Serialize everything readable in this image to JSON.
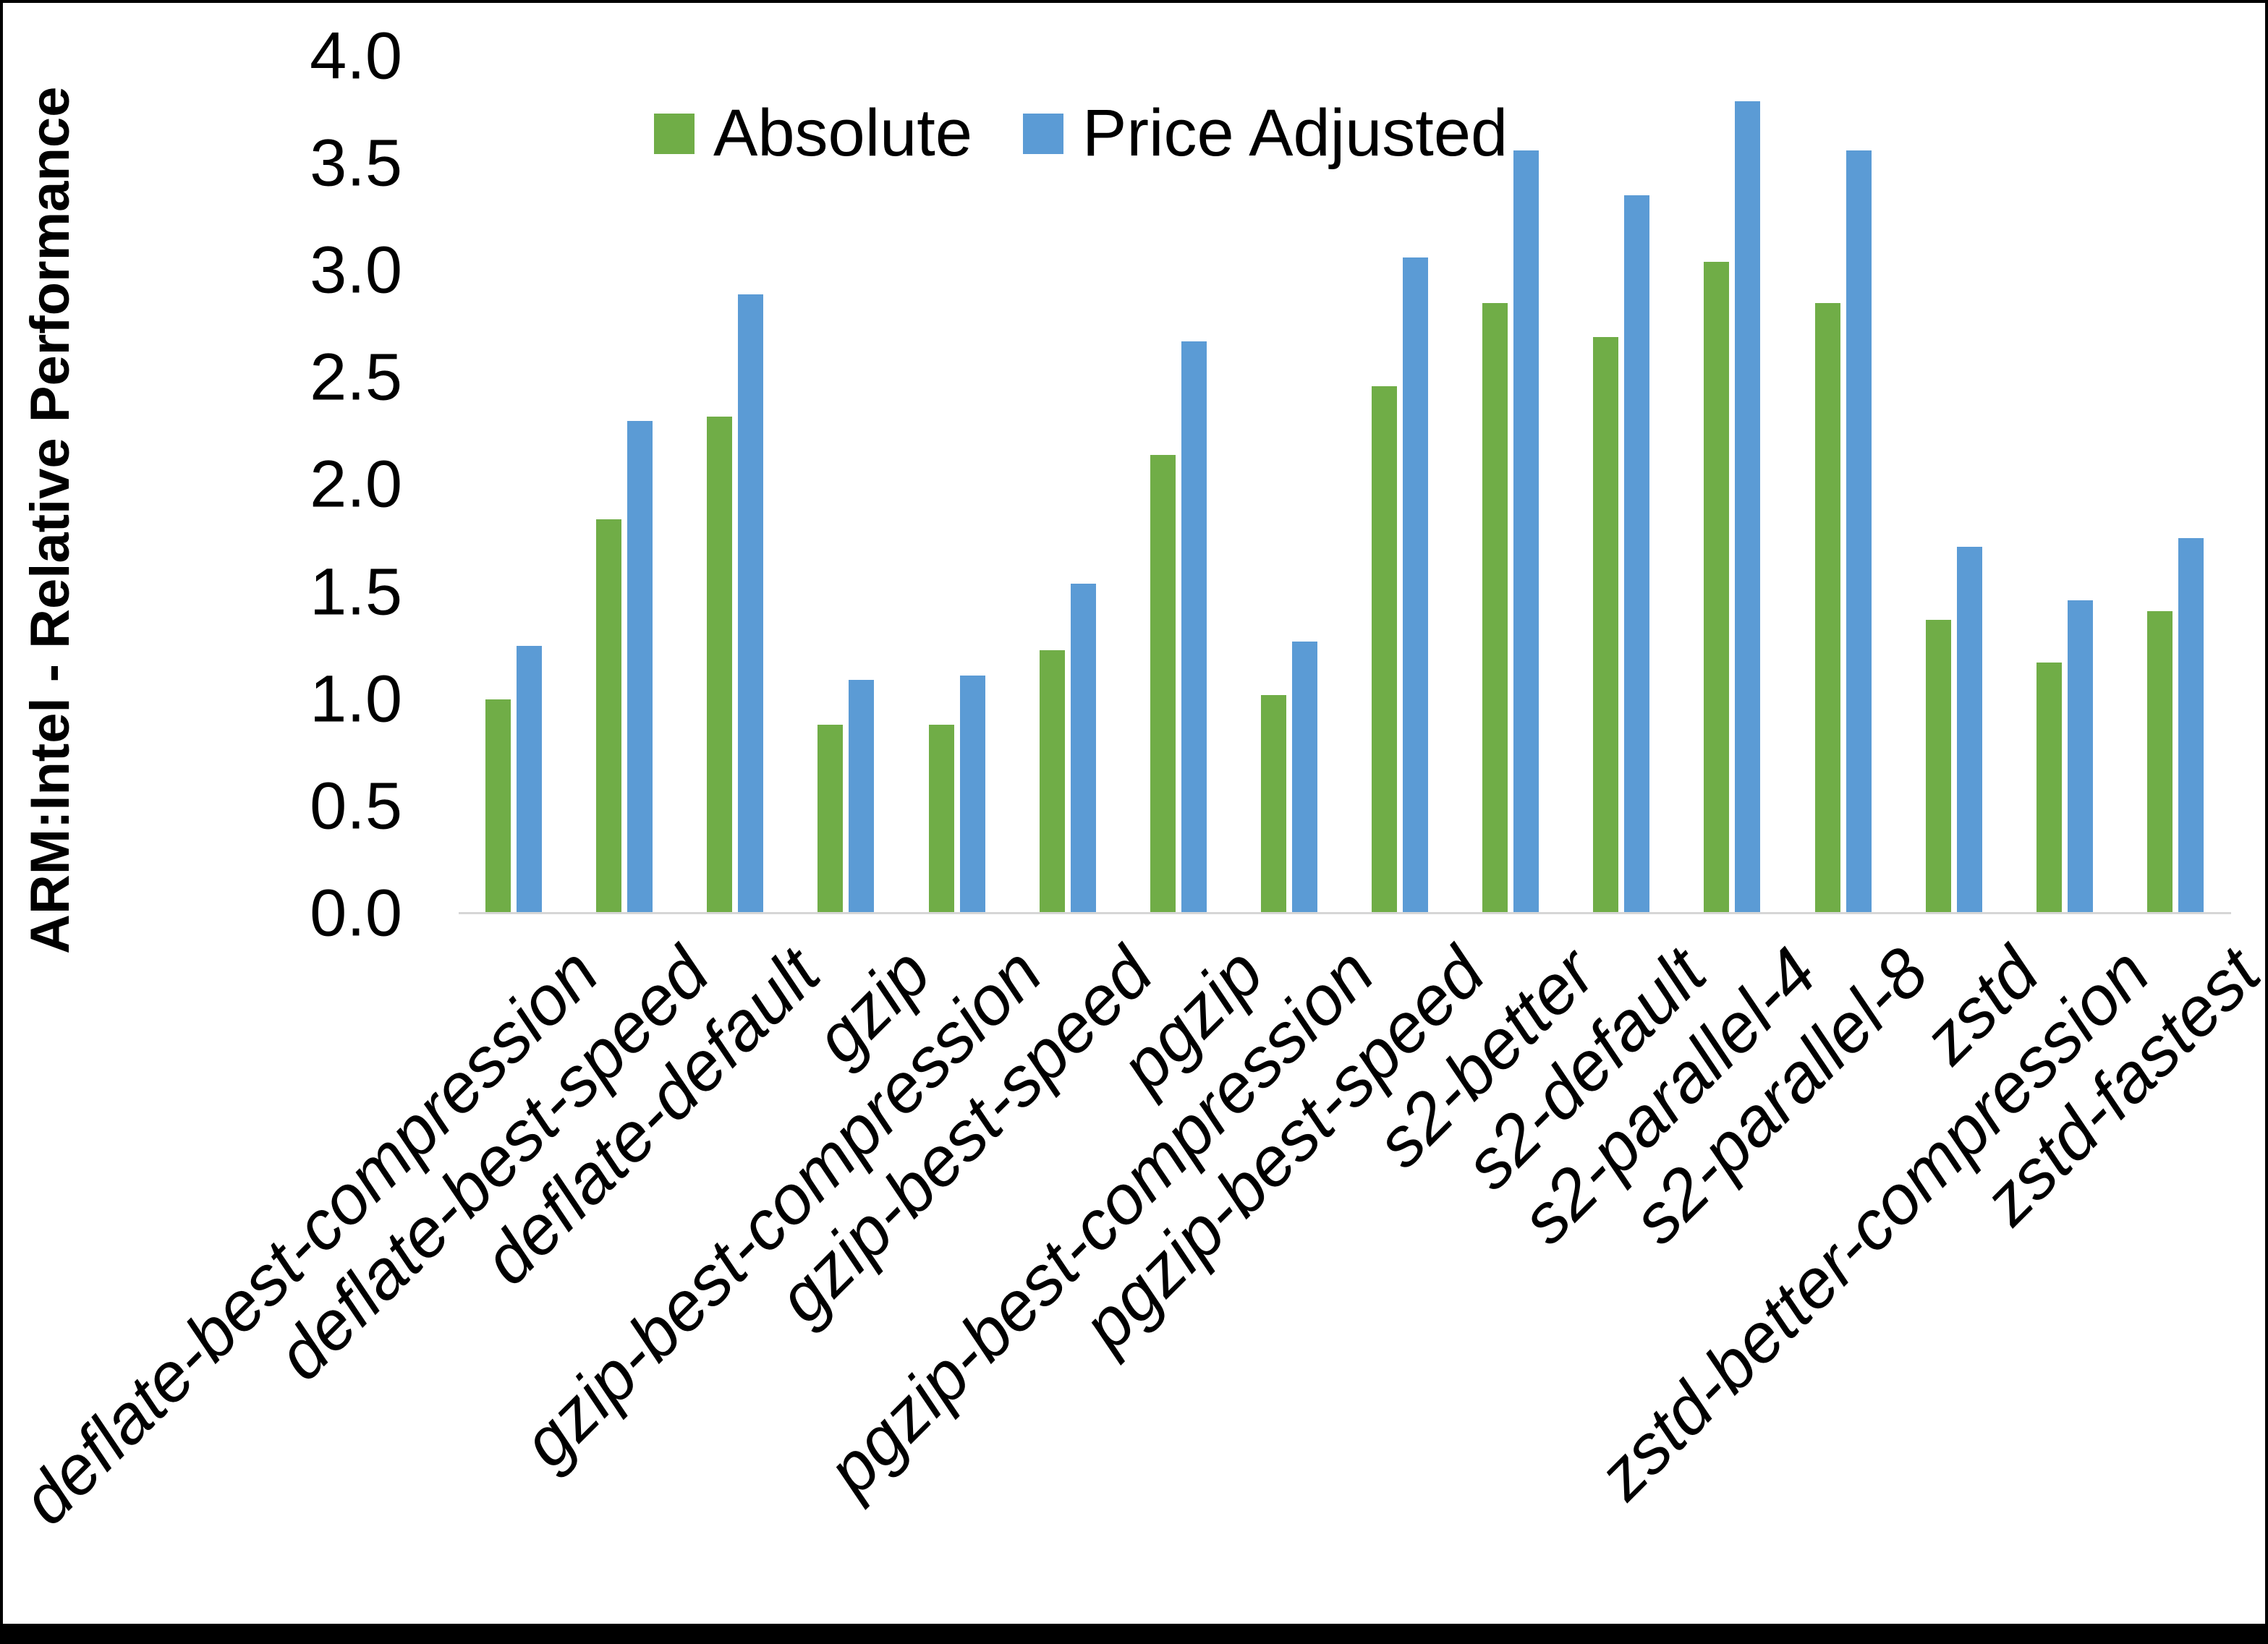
{
  "chart_data": {
    "type": "bar",
    "title": "",
    "xlabel": "",
    "ylabel": "ARM:Intel - Relative Performance",
    "ylim": [
      0.0,
      4.0
    ],
    "ytick_step": 0.5,
    "ytick_labels": [
      "0.0",
      "0.5",
      "1.0",
      "1.5",
      "2.0",
      "2.5",
      "3.0",
      "3.5",
      "4.0"
    ],
    "grid": false,
    "legend_position": "top-center",
    "categories": [
      "deflate-best-compression",
      "deflate-best-speed",
      "deflate-default",
      "gzip",
      "gzip-best-compression",
      "gzip-best-speed",
      "pgzip",
      "pgzip-best-compression",
      "pgzip-best-speed",
      "s2-better",
      "s2-default",
      "s2-parallel-4",
      "s2-parallel-8",
      "zstd",
      "zstd-better-compression",
      "zstd-fastest"
    ],
    "series": [
      {
        "name": "Absolute",
        "color": "#70AD47",
        "values": [
          1.0,
          1.84,
          2.32,
          0.88,
          0.88,
          1.23,
          2.14,
          1.02,
          2.46,
          2.85,
          2.69,
          3.04,
          2.85,
          1.37,
          1.17,
          1.41
        ]
      },
      {
        "name": "Price Adjusted",
        "color": "#5B9BD5",
        "values": [
          1.25,
          2.3,
          2.89,
          1.09,
          1.11,
          1.54,
          2.67,
          1.27,
          3.06,
          3.56,
          3.35,
          3.79,
          3.56,
          1.71,
          1.46,
          1.75
        ]
      }
    ]
  },
  "colors": {
    "background": "#FFFFFF",
    "axis_line": "#D6D6D6",
    "text": "#000000",
    "border": "#000000"
  }
}
